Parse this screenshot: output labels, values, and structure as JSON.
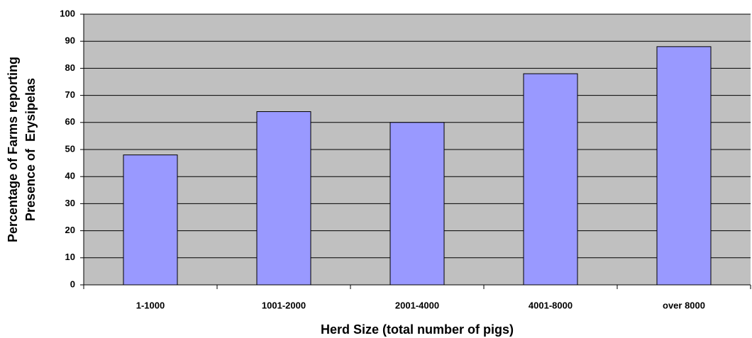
{
  "chart_data": {
    "type": "bar",
    "xlabel": "Herd Size (total number of pigs)",
    "ylabel": [
      "Percentage of Farms reporting",
      "Presence of  Erysipelas"
    ],
    "categories": [
      "1-1000",
      "1001-2000",
      "2001-4000",
      "4001-8000",
      "over 8000"
    ],
    "values": [
      48,
      64,
      60,
      78,
      88
    ],
    "color": "#9999ff",
    "ylim": [
      0,
      100
    ],
    "yticks": [
      0,
      10,
      20,
      30,
      40,
      50,
      60,
      70,
      80,
      90,
      100
    ],
    "grid": true
  }
}
